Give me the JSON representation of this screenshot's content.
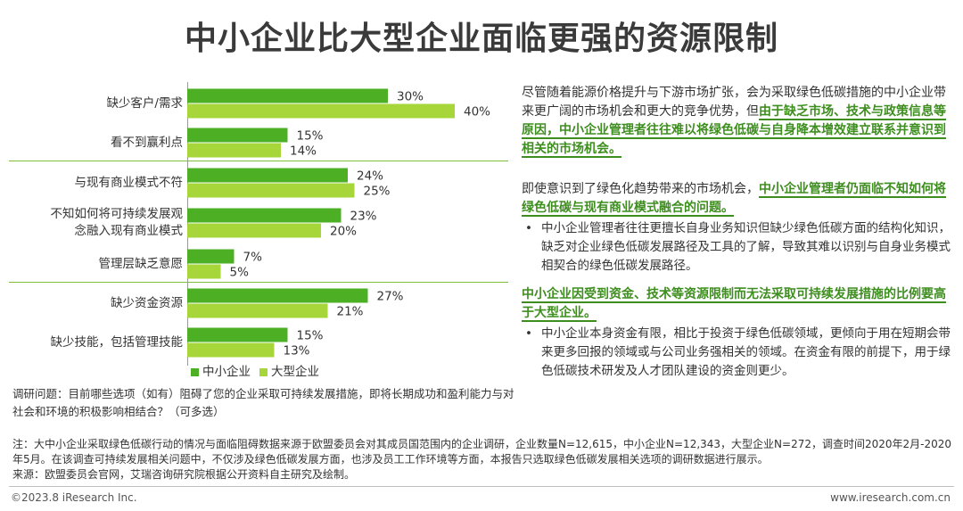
{
  "title": "中小企业比大型企业面临更强的资源限制",
  "chart_data": {
    "type": "bar",
    "orientation": "horizontal",
    "categories": [
      "缺少客户/需求",
      "看不到赢利点",
      "与现有商业模式不符",
      "不知如何将可持续发展观念融入现有商业模式",
      "管理层缺乏意愿",
      "缺少资金资源",
      "缺少技能，包括管理技能"
    ],
    "category_lines": [
      [
        "缺少客户/需求"
      ],
      [
        "看不到赢利点"
      ],
      [
        "与现有商业模式不符"
      ],
      [
        "不知如何将可持续发展观",
        "念融入现有商业模式"
      ],
      [
        "管理层缺乏意愿"
      ],
      [
        "缺少资金资源"
      ],
      [
        "缺少技能，包括管理技能"
      ]
    ],
    "series": [
      {
        "name": "中小企业",
        "color": "#4caf24",
        "values": [
          30,
          15,
          24,
          23,
          7,
          27,
          15
        ]
      },
      {
        "name": "大型企业",
        "color": "#a6d63a",
        "values": [
          40,
          14,
          25,
          20,
          5,
          21,
          13
        ]
      }
    ],
    "value_suffix": "%",
    "groups": [
      [
        0,
        1
      ],
      [
        2,
        3,
        4
      ],
      [
        5,
        6
      ]
    ]
  },
  "legend": {
    "sme": "中小企业",
    "large": "大型企业"
  },
  "question": "调研问题：目前哪些选项（如有）阻碍了您的企业采取可持续发展措施，即将长期成功和盈利能力与对社会和环境的积极影响相结合？（可多选）",
  "panel1": {
    "plain": "尽管随着能源价格提升与下游市场扩张，会为采取绿色低碳措施的中小企业带来更广阔的市场机会和更大的竞争优势，但",
    "highlight": "由于缺乏市场、技术与政策信息等原因，中小企业管理者往往难以将绿色低碳与自身降本增效建立联系并意识到相关的市场机会。"
  },
  "panel2": {
    "plain": "即使意识到了绿色化趋势带来的市场机会，",
    "highlight": "中小企业管理者仍面临不知如何将绿色低碳与现有商业模式融合的问题。",
    "bullet": "中小企业管理者往往更擅长自身业务知识但缺少绿色低碳方面的结构化知识，缺乏对企业绿色低碳发展路径及工具的了解，导致其难以识别与自身业务模式相契合的绿色低碳发展路径。"
  },
  "panel3": {
    "highlight": "中小企业因受到资金、技术等资源限制而无法采取可持续发展措施的比例要高于大型企业。",
    "bullet": "中小企业本身资金有限，相比于投资于绿色低碳领域，更倾向于用在短期会带来更多回报的领域或与公司业务强相关的领域。在资金有限的前提下，用于绿色低碳技术研发及人才团队建设的资金则更少。"
  },
  "bullet_symbol": "•",
  "note": "注：大中小企业采取绿色低碳行动的情况与面临阻碍数据来源于欧盟委员会对其成员国范围内的企业调研，企业数量N=12,615，中小企业N=12,343，大型企业N=272，调查时间2020年2月-2020年5月。在该调查可持续发展相关问题中，不仅涉及绿色低碳发展方面，也涉及员工工作环境等方面，本报告只选取绿色低碳发展相关选项的调研数据进行展示。",
  "source": "来源：欧盟委员会官网，艾瑞咨询研究院根据公开资料自主研究及绘制。",
  "copyright": "©2023.8 iResearch Inc.",
  "website": "www.iresearch.com.cn"
}
